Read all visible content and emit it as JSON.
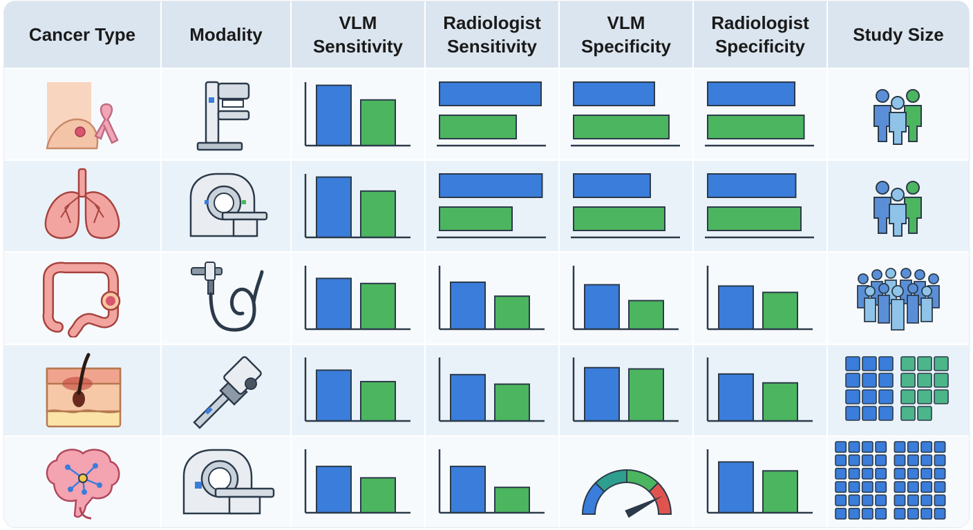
{
  "headers": {
    "cancer_type": "Cancer Type",
    "modality": "Modality",
    "vlm_sens_1": "VLM",
    "vlm_sens_2": "Sensitivity",
    "rad_sens_1": "Radiologist",
    "rad_sens_2": "Sensitivity",
    "vlm_spec_1": "VLM",
    "vlm_spec_2": "Specificity",
    "rad_spec_1": "Radiologist",
    "rad_spec_2": "Specificity",
    "study_size": "Study Size"
  },
  "colors": {
    "blue": "#3a7ddb",
    "green": "#4cb55f",
    "outline": "#2b3a4a",
    "header_bg": "#dbe5ef"
  },
  "rows": [
    {
      "cancer_icon": "breast-ribbon-icon",
      "modality_icon": "mammography-machine-icon",
      "charts": [
        {
          "orientation": "vertical",
          "values": [
            0.95,
            0.72
          ]
        },
        {
          "orientation": "horizontal",
          "values": [
            0.98,
            0.74
          ]
        },
        {
          "orientation": "horizontal",
          "values": [
            0.78,
            0.92
          ]
        },
        {
          "orientation": "horizontal",
          "values": [
            0.84,
            0.93
          ]
        }
      ],
      "study_size_icon": "small-group-icon"
    },
    {
      "cancer_icon": "lungs-icon",
      "modality_icon": "ct-scanner-icon",
      "charts": [
        {
          "orientation": "vertical",
          "values": [
            0.95,
            0.73
          ]
        },
        {
          "orientation": "horizontal",
          "values": [
            0.99,
            0.7
          ]
        },
        {
          "orientation": "horizontal",
          "values": [
            0.74,
            0.88
          ]
        },
        {
          "orientation": "horizontal",
          "values": [
            0.85,
            0.9
          ]
        }
      ],
      "study_size_icon": "small-group-icon"
    },
    {
      "cancer_icon": "colon-icon",
      "modality_icon": "endoscope-icon",
      "charts": [
        {
          "orientation": "vertical",
          "values": [
            0.8,
            0.72
          ]
        },
        {
          "orientation": "vertical",
          "values": [
            0.74,
            0.52
          ]
        },
        {
          "orientation": "vertical",
          "values": [
            0.7,
            0.45
          ]
        },
        {
          "orientation": "vertical",
          "values": [
            0.68,
            0.58
          ]
        }
      ],
      "study_size_icon": "large-crowd-icon"
    },
    {
      "cancer_icon": "skin-layers-icon",
      "modality_icon": "dermatoscope-icon",
      "charts": [
        {
          "orientation": "vertical",
          "values": [
            0.8,
            0.62
          ]
        },
        {
          "orientation": "vertical",
          "values": [
            0.73,
            0.58
          ]
        },
        {
          "orientation": "vertical",
          "values": [
            0.84,
            0.82
          ]
        },
        {
          "orientation": "vertical",
          "values": [
            0.74,
            0.6
          ]
        }
      ],
      "study_size_icon": "medium-grid-icon"
    },
    {
      "cancer_icon": "brain-network-icon",
      "modality_icon": "mri-scanner-icon",
      "charts": [
        {
          "orientation": "vertical",
          "values": [
            0.73,
            0.55
          ]
        },
        {
          "orientation": "vertical",
          "values": [
            0.73,
            0.4
          ]
        },
        {
          "orientation": "gauge",
          "value": 0.85
        },
        {
          "orientation": "vertical",
          "values": [
            0.8,
            0.66
          ]
        }
      ],
      "study_size_icon": "large-grid-icon"
    }
  ]
}
